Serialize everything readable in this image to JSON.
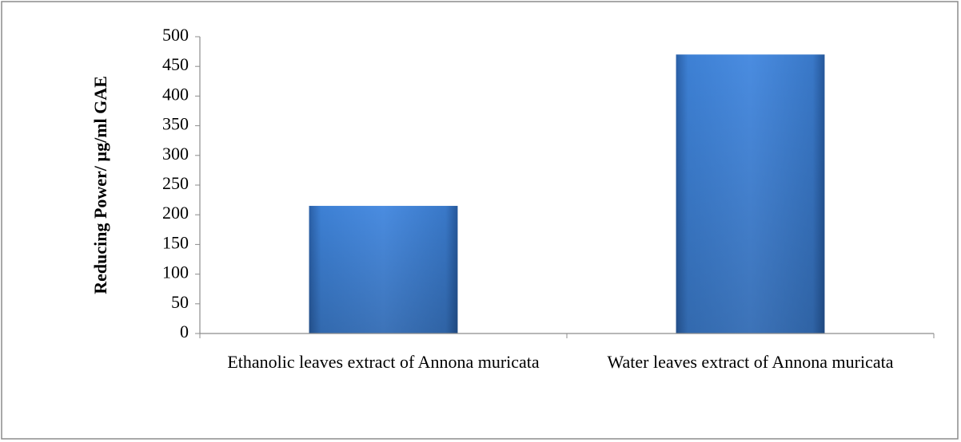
{
  "chart_data": {
    "type": "bar",
    "y_label": "Reducing Power/  µg/ml GAE",
    "categories": [
      "Ethanolic leaves extract of Annona muricata",
      "Water leaves extract of Annona muricata"
    ],
    "values": [
      215,
      470
    ],
    "color": "#3a7bd0",
    "ylim": [
      0,
      500
    ],
    "yticks": [
      0,
      50,
      100,
      150,
      200,
      250,
      300,
      350,
      400,
      450,
      500
    ],
    "grid": false
  }
}
